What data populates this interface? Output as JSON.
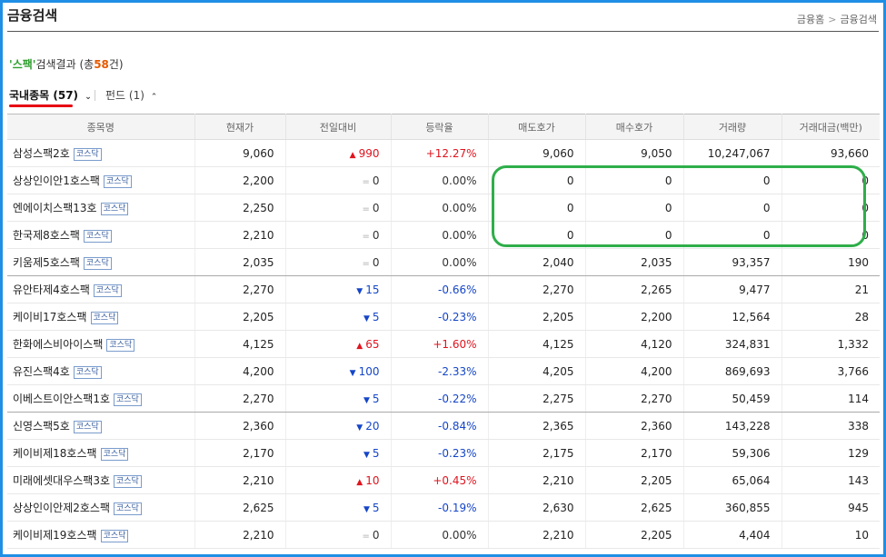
{
  "page": {
    "title": "금융검색",
    "breadcrumb": [
      "금융홈",
      "금융검색"
    ],
    "breadcrumb_sep": ">"
  },
  "result": {
    "quote_open": "'",
    "keyword": "스팩",
    "quote_close": "'",
    "label": "검색결과",
    "paren_open": " (총",
    "count": "58",
    "paren_close": "건)"
  },
  "tabs": {
    "domestic": {
      "label": "국내종목",
      "count": "(57)",
      "chevron": "⌄"
    },
    "fund": {
      "label": "펀드",
      "count": "(1)",
      "chevron": "⌃"
    }
  },
  "table": {
    "headers": [
      "종목명",
      "현재가",
      "전일대비",
      "등락율",
      "매도호가",
      "매수호가",
      "거래량",
      "거래대금(백만)"
    ],
    "rows": [
      {
        "name": "삼성스팩2호",
        "market": "코스닥",
        "price": "9,060",
        "dir": "up",
        "change": "990",
        "rate": "+12.27%",
        "ask": "9,060",
        "bid": "9,050",
        "volume": "10,247,067",
        "amount": "93,660"
      },
      {
        "name": "상상인이안1호스팩",
        "market": "코스닥",
        "price": "2,200",
        "dir": "flat",
        "change": "0",
        "rate": "0.00%",
        "ask": "0",
        "bid": "0",
        "volume": "0",
        "amount": "0"
      },
      {
        "name": "엔에이치스팩13호",
        "market": "코스닥",
        "price": "2,250",
        "dir": "flat",
        "change": "0",
        "rate": "0.00%",
        "ask": "0",
        "bid": "0",
        "volume": "0",
        "amount": "0"
      },
      {
        "name": "한국제8호스팩",
        "market": "코스닥",
        "price": "2,210",
        "dir": "flat",
        "change": "0",
        "rate": "0.00%",
        "ask": "0",
        "bid": "0",
        "volume": "0",
        "amount": "0"
      },
      {
        "name": "키움제5호스팩",
        "market": "코스닥",
        "price": "2,035",
        "dir": "flat",
        "change": "0",
        "rate": "0.00%",
        "ask": "2,040",
        "bid": "2,035",
        "volume": "93,357",
        "amount": "190"
      },
      {
        "name": "유안타제4호스팩",
        "market": "코스닥",
        "price": "2,270",
        "dir": "down",
        "change": "15",
        "rate": "-0.66%",
        "ask": "2,270",
        "bid": "2,265",
        "volume": "9,477",
        "amount": "21"
      },
      {
        "name": "케이비17호스팩",
        "market": "코스닥",
        "price": "2,205",
        "dir": "down",
        "change": "5",
        "rate": "-0.23%",
        "ask": "2,205",
        "bid": "2,200",
        "volume": "12,564",
        "amount": "28"
      },
      {
        "name": "한화에스비아이스팩",
        "market": "코스닥",
        "price": "4,125",
        "dir": "up",
        "change": "65",
        "rate": "+1.60%",
        "ask": "4,125",
        "bid": "4,120",
        "volume": "324,831",
        "amount": "1,332"
      },
      {
        "name": "유진스팩4호",
        "market": "코스닥",
        "price": "4,200",
        "dir": "down",
        "change": "100",
        "rate": "-2.33%",
        "ask": "4,205",
        "bid": "4,200",
        "volume": "869,693",
        "amount": "3,766"
      },
      {
        "name": "이베스트이안스팩1호",
        "market": "코스닥",
        "price": "2,270",
        "dir": "down",
        "change": "5",
        "rate": "-0.22%",
        "ask": "2,275",
        "bid": "2,270",
        "volume": "50,459",
        "amount": "114"
      },
      {
        "name": "신영스팩5호",
        "market": "코스닥",
        "price": "2,360",
        "dir": "down",
        "change": "20",
        "rate": "-0.84%",
        "ask": "2,365",
        "bid": "2,360",
        "volume": "143,228",
        "amount": "338"
      },
      {
        "name": "케이비제18호스팩",
        "market": "코스닥",
        "price": "2,170",
        "dir": "down",
        "change": "5",
        "rate": "-0.23%",
        "ask": "2,175",
        "bid": "2,170",
        "volume": "59,306",
        "amount": "129"
      },
      {
        "name": "미래에셋대우스팩3호",
        "market": "코스닥",
        "price": "2,210",
        "dir": "up",
        "change": "10",
        "rate": "+0.45%",
        "ask": "2,210",
        "bid": "2,205",
        "volume": "65,064",
        "amount": "143"
      },
      {
        "name": "상상인이안제2호스팩",
        "market": "코스닥",
        "price": "2,625",
        "dir": "down",
        "change": "5",
        "rate": "-0.19%",
        "ask": "2,630",
        "bid": "2,625",
        "volume": "360,855",
        "amount": "945"
      },
      {
        "name": "케이비제19호스팩",
        "market": "코스닥",
        "price": "2,210",
        "dir": "flat",
        "change": "0",
        "rate": "0.00%",
        "ask": "2,210",
        "bid": "2,205",
        "volume": "4,404",
        "amount": "10"
      }
    ]
  },
  "indicators": {
    "up": "▲",
    "down": "▼",
    "flat": "="
  },
  "colors": {
    "up": "#e0141e",
    "down": "#1546c8",
    "highlight": "#2fae4a",
    "frame": "#1f8fe6",
    "tab_underline": "#e60012"
  }
}
